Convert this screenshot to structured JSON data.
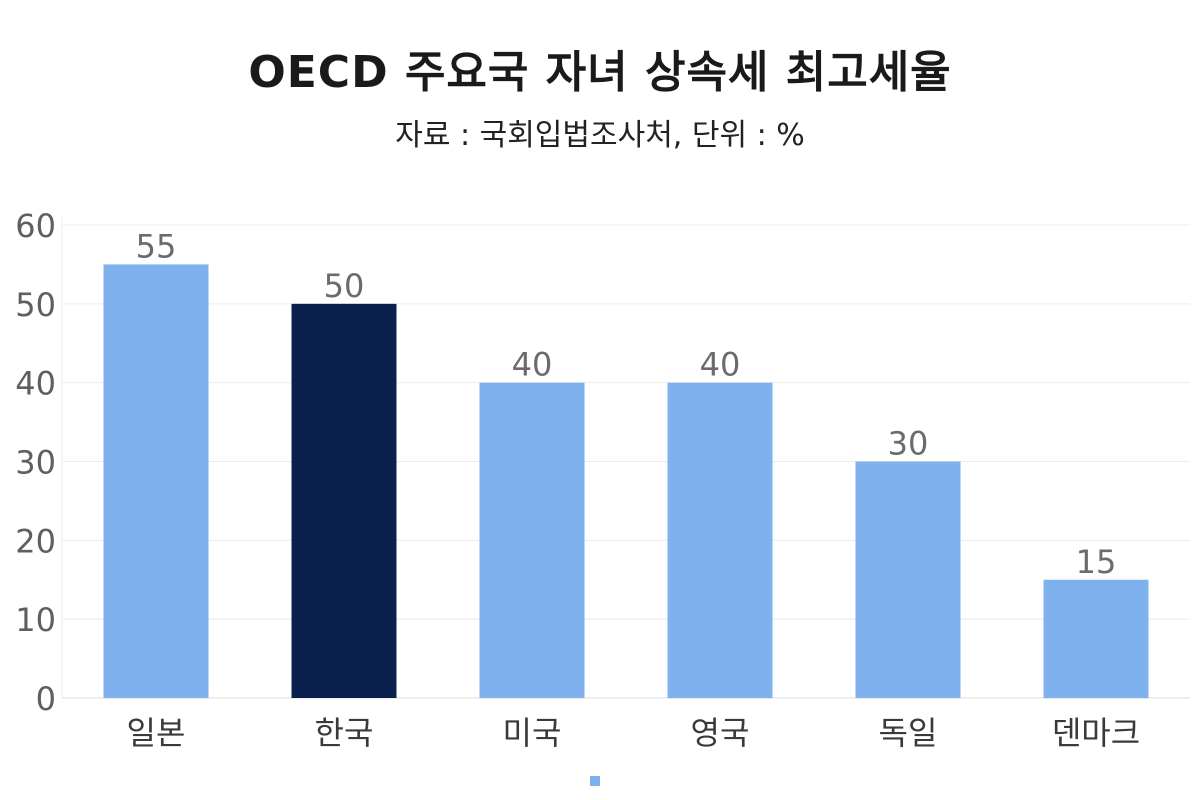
{
  "title": "OECD 주요국 자녀 상속세 최고세율",
  "subtitle": "자료 : 국회입법조사처, 단위 : %",
  "colors": {
    "default_bar": "#7fb1ee",
    "highlight_bar": "#0a214f",
    "grid": "#ececec",
    "axis_text": "#5f5f5f",
    "label_text": "#6b6b6b",
    "category_text": "#3a3a3a"
  },
  "legend": {
    "marker_color": "#7fb1ee"
  },
  "chart_data": {
    "type": "bar",
    "title": "OECD 주요국 자녀 상속세 최고세율",
    "subtitle": "자료 : 국회입법조사처, 단위 : %",
    "categories": [
      "일본",
      "한국",
      "미국",
      "영국",
      "독일",
      "덴마크"
    ],
    "values": [
      55,
      50,
      40,
      40,
      30,
      15
    ],
    "data_labels": [
      "55",
      "50",
      "40",
      "40",
      "30",
      "15"
    ],
    "highlight": [
      "한국"
    ],
    "xlabel": "",
    "ylabel": "",
    "ylim": [
      0,
      60
    ],
    "yticks": [
      0,
      10,
      20,
      30,
      40,
      50,
      60
    ],
    "grid": true,
    "legend_position": "bottom"
  }
}
